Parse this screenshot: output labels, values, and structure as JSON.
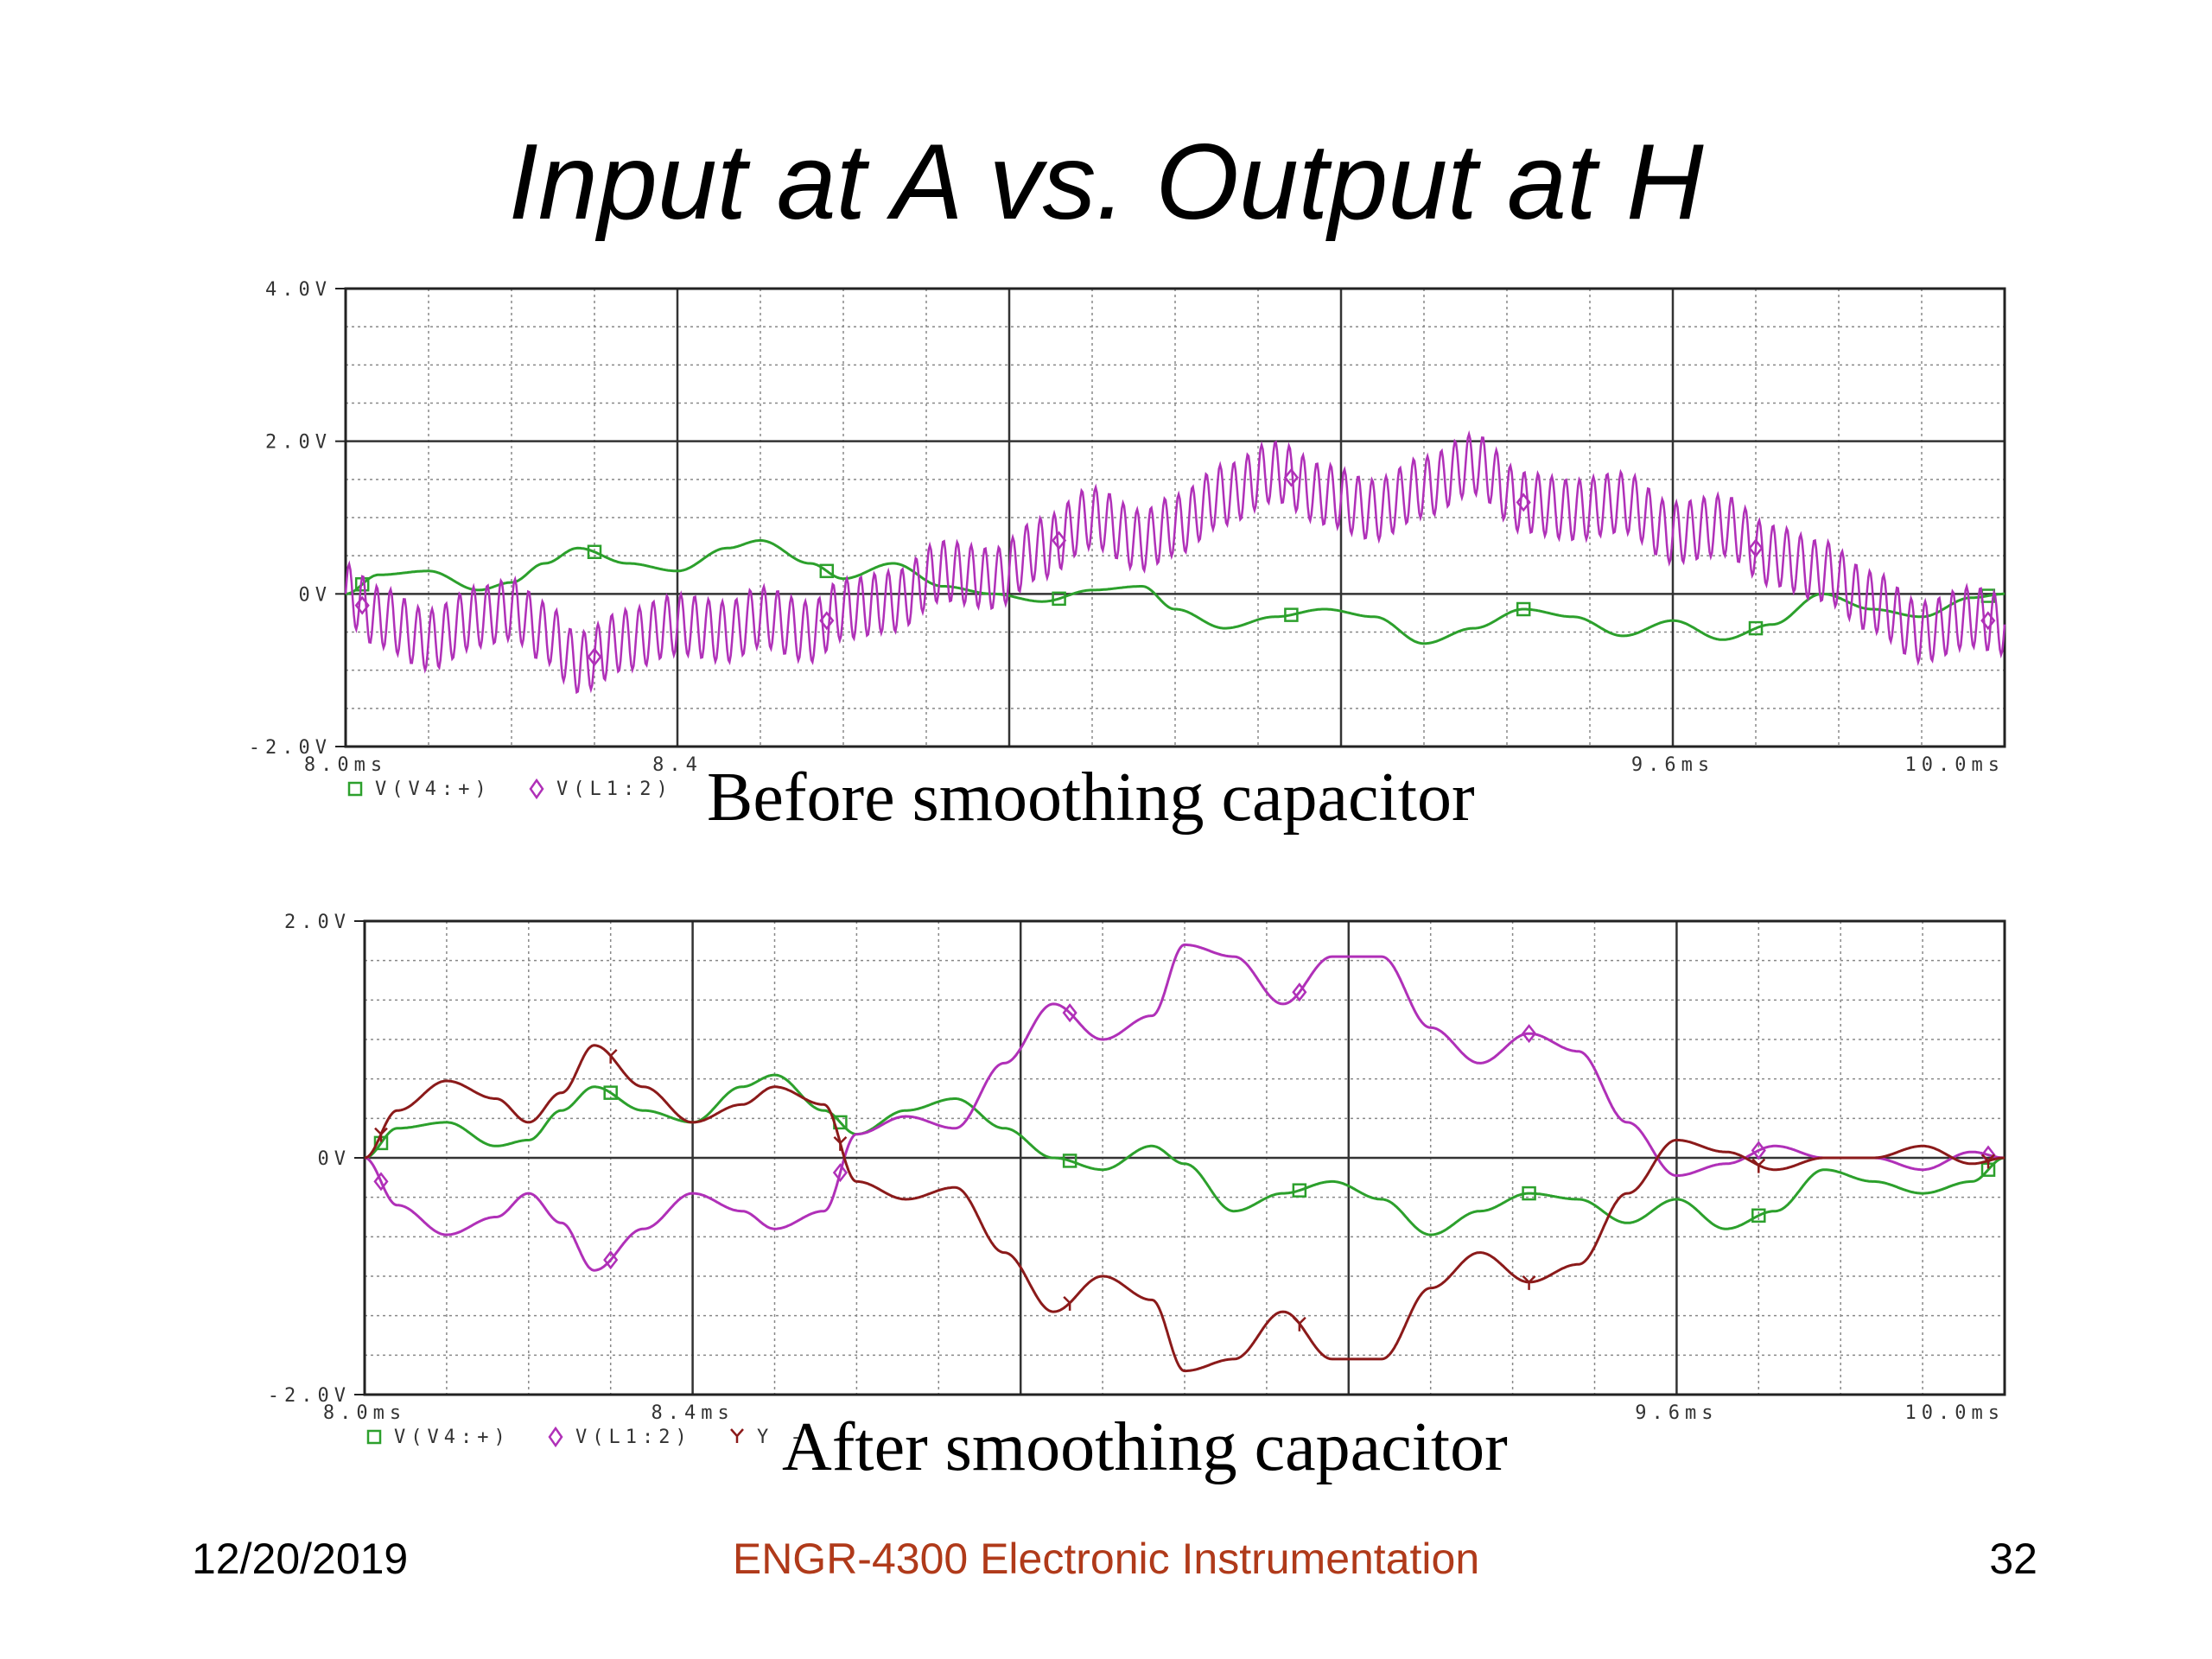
{
  "title": "Input at A vs. Output at H",
  "captions": {
    "top": "Before smoothing capacitor",
    "bottom": "After smoothing capacitor"
  },
  "footer": {
    "date": "12/20/2019",
    "course": "ENGR-4300  Electronic Instrumentation",
    "page": "32"
  },
  "colors": {
    "green": "#2ca02c",
    "magenta": "#b030b8",
    "darkred": "#8b1a1a",
    "grid": "#777777",
    "footer": "#b03a1a"
  },
  "chart_data": [
    {
      "type": "line",
      "x_unit": "ms",
      "xlim": [
        8.0,
        10.0
      ],
      "ylim": [
        -2.0,
        4.0
      ],
      "y_ticks": [
        "4.0V",
        "2.0V",
        "0V",
        "-2.0V"
      ],
      "x_ticks": [
        "8.0ms",
        "8.4",
        "9.6ms",
        "10.0ms"
      ],
      "series": [
        {
          "name": "V(V4:+)",
          "marker": "square",
          "color": "#2ca02c",
          "x": [
            8.0,
            8.04,
            8.1,
            8.16,
            8.2,
            8.24,
            8.28,
            8.34,
            8.4,
            8.46,
            8.5,
            8.56,
            8.6,
            8.66,
            8.72,
            8.78,
            8.84,
            8.9,
            8.96,
            9.0,
            9.06,
            9.12,
            9.18,
            9.24,
            9.3,
            9.36,
            9.42,
            9.48,
            9.54,
            9.6,
            9.66,
            9.72,
            9.78,
            9.84,
            9.9,
            9.96,
            10.0
          ],
          "y": [
            0.0,
            0.25,
            0.3,
            0.05,
            0.15,
            0.4,
            0.6,
            0.4,
            0.3,
            0.6,
            0.7,
            0.4,
            0.2,
            0.4,
            0.1,
            0.0,
            -0.1,
            0.05,
            0.1,
            -0.2,
            -0.45,
            -0.3,
            -0.2,
            -0.3,
            -0.65,
            -0.45,
            -0.2,
            -0.3,
            -0.55,
            -0.35,
            -0.6,
            -0.4,
            0.0,
            -0.2,
            -0.3,
            -0.05,
            0.0
          ]
        },
        {
          "name": "V(L1:2)",
          "marker": "diamond",
          "color": "#b030b8",
          "x": [
            8.0,
            8.04,
            8.1,
            8.16,
            8.2,
            8.24,
            8.28,
            8.34,
            8.4,
            8.46,
            8.5,
            8.56,
            8.6,
            8.66,
            8.72,
            8.78,
            8.84,
            8.9,
            8.96,
            9.0,
            9.06,
            9.12,
            9.18,
            9.24,
            9.3,
            9.36,
            9.42,
            9.48,
            9.54,
            9.6,
            9.66,
            9.72,
            9.78,
            9.84,
            9.9,
            9.96,
            10.0
          ],
          "y": [
            0.0,
            -0.3,
            -0.6,
            -0.3,
            -0.2,
            -0.5,
            -0.9,
            -0.6,
            -0.4,
            -0.5,
            -0.3,
            -0.5,
            -0.2,
            -0.1,
            0.3,
            0.2,
            0.6,
            1.0,
            0.7,
            0.9,
            1.3,
            1.6,
            1.3,
            1.1,
            1.4,
            1.7,
            1.2,
            1.1,
            1.2,
            0.8,
            0.9,
            0.5,
            0.3,
            -0.1,
            -0.5,
            -0.3,
            -0.4
          ],
          "ripple_amplitude": 0.4
        }
      ]
    },
    {
      "type": "line",
      "x_unit": "ms",
      "xlim": [
        8.0,
        10.0
      ],
      "ylim": [
        -2.0,
        2.0
      ],
      "y_ticks": [
        "2.0V",
        "0V",
        "-2.0V"
      ],
      "x_ticks": [
        "8.0ms",
        "8.4ms",
        "9.6ms",
        "10.0ms"
      ],
      "series": [
        {
          "name": "V(V4:+)",
          "marker": "square",
          "color": "#2ca02c",
          "x": [
            8.0,
            8.04,
            8.1,
            8.16,
            8.2,
            8.24,
            8.28,
            8.34,
            8.4,
            8.46,
            8.5,
            8.56,
            8.6,
            8.66,
            8.72,
            8.78,
            8.84,
            8.9,
            8.96,
            9.0,
            9.06,
            9.12,
            9.18,
            9.24,
            9.3,
            9.36,
            9.42,
            9.48,
            9.54,
            9.6,
            9.66,
            9.72,
            9.78,
            9.84,
            9.9,
            9.96,
            10.0
          ],
          "y": [
            0.0,
            0.25,
            0.3,
            0.1,
            0.15,
            0.4,
            0.6,
            0.4,
            0.3,
            0.6,
            0.7,
            0.4,
            0.2,
            0.4,
            0.5,
            0.25,
            0.0,
            -0.1,
            0.1,
            -0.05,
            -0.45,
            -0.3,
            -0.2,
            -0.35,
            -0.65,
            -0.45,
            -0.3,
            -0.35,
            -0.55,
            -0.35,
            -0.6,
            -0.45,
            -0.1,
            -0.2,
            -0.3,
            -0.2,
            0.0
          ]
        },
        {
          "name": "V(L1:2)",
          "marker": "diamond",
          "color": "#b030b8",
          "x": [
            8.0,
            8.04,
            8.1,
            8.16,
            8.2,
            8.24,
            8.28,
            8.34,
            8.4,
            8.46,
            8.5,
            8.56,
            8.6,
            8.66,
            8.72,
            8.78,
            8.84,
            8.9,
            8.96,
            9.0,
            9.06,
            9.12,
            9.18,
            9.24,
            9.3,
            9.36,
            9.42,
            9.48,
            9.54,
            9.6,
            9.66,
            9.72,
            9.78,
            9.84,
            9.9,
            9.96,
            10.0
          ],
          "y": [
            0.0,
            -0.4,
            -0.65,
            -0.5,
            -0.3,
            -0.55,
            -0.95,
            -0.6,
            -0.3,
            -0.45,
            -0.6,
            -0.45,
            0.2,
            0.35,
            0.25,
            0.8,
            1.3,
            1.0,
            1.2,
            1.8,
            1.7,
            1.3,
            1.7,
            1.7,
            1.1,
            0.8,
            1.05,
            0.9,
            0.3,
            -0.15,
            -0.05,
            0.1,
            0.0,
            0.0,
            -0.1,
            0.05,
            0.0
          ]
        },
        {
          "name": "Y -",
          "marker": "cross",
          "color": "#8b1a1a",
          "x": [
            8.0,
            8.04,
            8.1,
            8.16,
            8.2,
            8.24,
            8.28,
            8.34,
            8.4,
            8.46,
            8.5,
            8.56,
            8.6,
            8.66,
            8.72,
            8.78,
            8.84,
            8.9,
            8.96,
            9.0,
            9.06,
            9.12,
            9.18,
            9.24,
            9.3,
            9.36,
            9.42,
            9.48,
            9.54,
            9.6,
            9.66,
            9.72,
            9.78,
            9.84,
            9.9,
            9.96,
            10.0
          ],
          "y": [
            0.0,
            0.4,
            0.65,
            0.5,
            0.3,
            0.55,
            0.95,
            0.6,
            0.3,
            0.45,
            0.6,
            0.45,
            -0.2,
            -0.35,
            -0.25,
            -0.8,
            -1.3,
            -1.0,
            -1.2,
            -1.8,
            -1.7,
            -1.3,
            -1.7,
            -1.7,
            -1.1,
            -0.8,
            -1.05,
            -0.9,
            -0.3,
            0.15,
            0.05,
            -0.1,
            0.0,
            0.0,
            0.1,
            -0.05,
            0.0
          ]
        }
      ]
    }
  ]
}
